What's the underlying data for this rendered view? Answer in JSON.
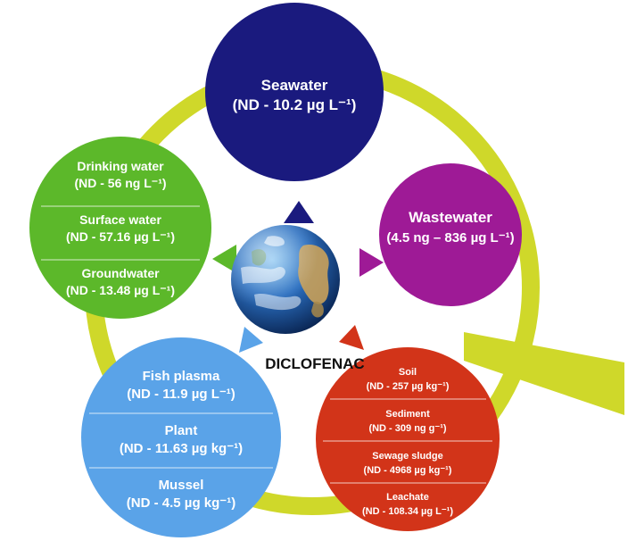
{
  "center": {
    "label": "DICLOFENAC"
  },
  "nodes": {
    "seawater": {
      "name": "Seawater",
      "range": "(ND - 10.2 µg L⁻¹)",
      "color": "#1a1a7e"
    },
    "wastewater": {
      "name": "Wastewater",
      "range": "(4.5 ng – 836 µg L⁻¹)",
      "color": "#9e1a96"
    },
    "freshwater": {
      "color": "#5cb82a",
      "items": [
        {
          "name": "Drinking water",
          "range": "(ND - 56 ng L⁻¹)"
        },
        {
          "name": "Surface water",
          "range": "(ND - 57.16 µg L⁻¹)"
        },
        {
          "name": "Groundwater",
          "range": "(ND - 13.48 µg L⁻¹)"
        }
      ]
    },
    "biota": {
      "color": "#5aa3e8",
      "items": [
        {
          "name": "Fish plasma",
          "range": "(ND - 11.9 µg L⁻¹)"
        },
        {
          "name": "Plant",
          "range": "(ND - 11.63 µg kg⁻¹)"
        },
        {
          "name": "Mussel",
          "range": "(ND - 4.5 µg kg⁻¹)"
        }
      ]
    },
    "solids": {
      "color": "#d23419",
      "items": [
        {
          "name": "Soil",
          "range": "(ND - 257 µg kg⁻¹)"
        },
        {
          "name": "Sediment",
          "range": "(ND - 309 ng g⁻¹)"
        },
        {
          "name": "Sewage sludge",
          "range": "(ND - 4968 µg kg⁻¹)"
        },
        {
          "name": "Leachate",
          "range": "(ND - 108.34 µg L⁻¹)"
        }
      ]
    }
  },
  "ring_color": "#cfd82a"
}
